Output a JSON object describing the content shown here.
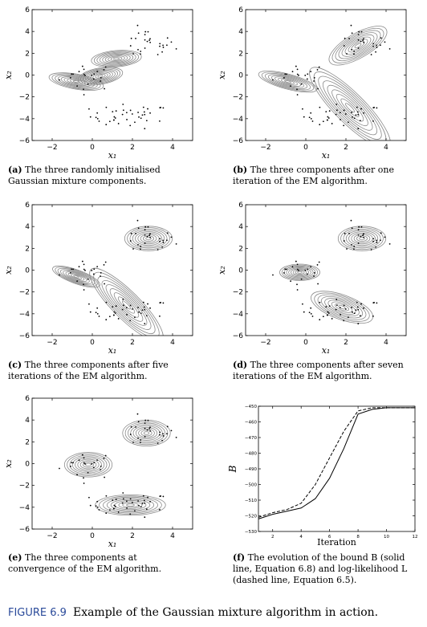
{
  "figure": {
    "label": "FIGURE 6.9",
    "text": "Example of the Gaussian mixture algorithm in action."
  },
  "chart_data": [
    {
      "id": "a",
      "type": "scatter",
      "caption_label": "(a)",
      "caption": "The three randomly initialised Gaussian mixture components.",
      "xlabel": "x₁",
      "ylabel": "x₂",
      "xlim": [
        -3,
        5
      ],
      "ylim": [
        -6,
        6
      ],
      "xticks": [
        -2,
        0,
        2,
        4
      ],
      "yticks": [
        -6,
        -4,
        -2,
        0,
        2,
        4,
        6
      ],
      "components": [
        {
          "mean": [
            -0.8,
            -0.6
          ],
          "sx": 1.1,
          "sy": 0.55,
          "angle": -10
        },
        {
          "mean": [
            0.4,
            -0.1
          ],
          "sx": 0.9,
          "sy": 0.6,
          "angle": 10
        },
        {
          "mean": [
            1.2,
            1.5
          ],
          "sx": 1.0,
          "sy": 0.6,
          "angle": 5
        }
      ]
    },
    {
      "id": "b",
      "type": "scatter",
      "caption_label": "(b)",
      "caption": "The three components after one iteration of the EM algorithm.",
      "xlabel": "x₁",
      "ylabel": "x₂",
      "xlim": [
        -3,
        5
      ],
      "ylim": [
        -6,
        6
      ],
      "xticks": [
        -2,
        0,
        2,
        4
      ],
      "yticks": [
        -6,
        -4,
        -2,
        0,
        2,
        4,
        6
      ],
      "components": [
        {
          "mean": [
            -0.9,
            -0.6
          ],
          "sx": 1.2,
          "sy": 0.55,
          "angle": -15
        },
        {
          "mean": [
            2.2,
            -3.0
          ],
          "sx": 2.2,
          "sy": 1.1,
          "angle": -45
        },
        {
          "mean": [
            2.6,
            2.7
          ],
          "sx": 1.3,
          "sy": 0.9,
          "angle": 30
        }
      ]
    },
    {
      "id": "c",
      "type": "scatter",
      "caption_label": "(c)",
      "caption": "The three components after five iterations of the EM algorithm.",
      "xlabel": "x₁",
      "ylabel": "x₂",
      "xlim": [
        -3,
        5
      ],
      "ylim": [
        -6,
        6
      ],
      "xticks": [
        -2,
        0,
        2,
        4
      ],
      "yticks": [
        -6,
        -4,
        -2,
        0,
        2,
        4,
        6
      ],
      "components": [
        {
          "mean": [
            -0.8,
            -0.6
          ],
          "sx": 1.0,
          "sy": 0.5,
          "angle": -20
        },
        {
          "mean": [
            1.7,
            -3.2
          ],
          "sx": 2.0,
          "sy": 1.0,
          "angle": -45
        },
        {
          "mean": [
            2.8,
            2.9
          ],
          "sx": 0.95,
          "sy": 0.9,
          "angle": 0
        }
      ]
    },
    {
      "id": "d",
      "type": "scatter",
      "caption_label": "(d)",
      "caption": "The three components after seven iterations of the EM algorithm.",
      "xlabel": "x₁",
      "ylabel": "x₂",
      "xlim": [
        -3,
        5
      ],
      "ylim": [
        -6,
        6
      ],
      "xticks": [
        -2,
        0,
        2,
        4
      ],
      "yticks": [
        -6,
        -4,
        -2,
        0,
        2,
        4,
        6
      ],
      "components": [
        {
          "mean": [
            -0.3,
            -0.2
          ],
          "sx": 0.8,
          "sy": 0.6,
          "angle": 0
        },
        {
          "mean": [
            1.8,
            -3.4
          ],
          "sx": 1.3,
          "sy": 0.9,
          "angle": -20
        },
        {
          "mean": [
            2.8,
            2.9
          ],
          "sx": 0.95,
          "sy": 0.9,
          "angle": 0
        }
      ]
    },
    {
      "id": "e",
      "type": "scatter",
      "caption_label": "(e)",
      "caption": "The three components at convergence of the EM algorithm.",
      "xlabel": "x₁",
      "ylabel": "x₂",
      "xlim": [
        -3,
        5
      ],
      "ylim": [
        -6,
        6
      ],
      "xticks": [
        -2,
        0,
        2,
        4
      ],
      "yticks": [
        -6,
        -4,
        -2,
        0,
        2,
        4,
        6
      ],
      "components": [
        {
          "mean": [
            -0.2,
            -0.1
          ],
          "sx": 0.95,
          "sy": 0.9,
          "angle": 0
        },
        {
          "mean": [
            1.9,
            -3.8
          ],
          "sx": 1.4,
          "sy": 0.75,
          "angle": 0
        },
        {
          "mean": [
            2.7,
            2.8
          ],
          "sx": 0.95,
          "sy": 0.95,
          "angle": 0
        }
      ]
    },
    {
      "id": "f",
      "type": "line",
      "caption_label": "(f)",
      "caption": "The evolution of the bound B (solid line, Equation 6.8) and log-likelihood L (dashed line, Equation 6.5).",
      "xlabel": "Iteration",
      "ylabel": "B",
      "xlim": [
        1,
        12
      ],
      "ylim": [
        -530,
        -450
      ],
      "xticks": [
        2,
        4,
        6,
        8,
        10,
        12
      ],
      "yticks": [
        -530,
        -520,
        -510,
        -500,
        -490,
        -480,
        -470,
        -460,
        -450
      ],
      "series": [
        {
          "style": "solid",
          "x": [
            1,
            2,
            3,
            4,
            5,
            6,
            7,
            8,
            9,
            10,
            11,
            12
          ],
          "y": [
            -522,
            -519,
            -517,
            -515,
            -509,
            -496,
            -477,
            -455,
            -452,
            -451,
            -451,
            -451
          ]
        },
        {
          "style": "dashed",
          "x": [
            1,
            2,
            3,
            4,
            5,
            6,
            7,
            8,
            9,
            10,
            11,
            12
          ],
          "y": [
            -521,
            -518,
            -516,
            -512,
            -500,
            -483,
            -466,
            -453,
            -451,
            -451,
            -451,
            -451
          ]
        }
      ]
    }
  ]
}
